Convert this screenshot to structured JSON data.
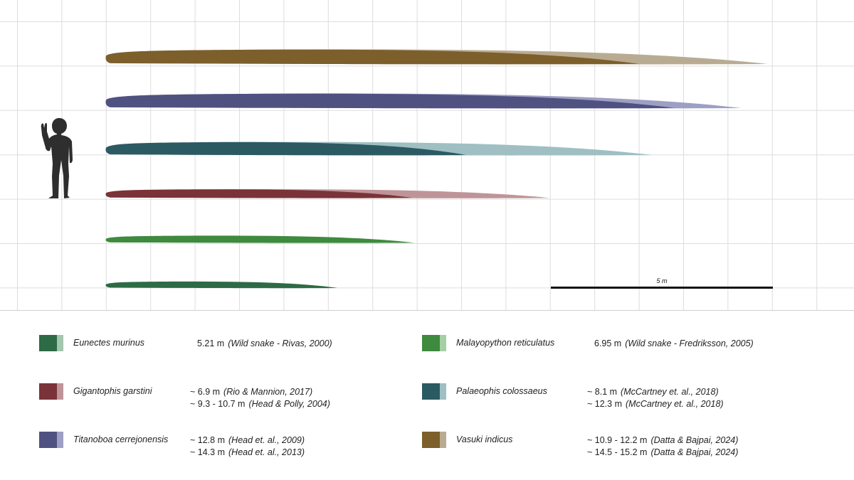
{
  "scale_bar": {
    "label": "5 m"
  },
  "human": {
    "icon": "human-silhouette-icon"
  },
  "colors": {
    "grid": "#dddddd",
    "background": "#ffffff"
  },
  "snakes": [
    {
      "key": "vasuki",
      "name": "Vasuki indicus",
      "dark": "#7d5f2c",
      "light": "#b9ab92",
      "lengths_m": [
        12.0,
        14.9
      ],
      "values": [
        {
          "len": "~ 10.9 - 12.2 m",
          "ref": "(Datta & Bajpai, 2024)"
        },
        {
          "len": "~ 14.5 - 15.2 m",
          "ref": "(Datta & Bajpai, 2024)"
        }
      ]
    },
    {
      "key": "titanoboa",
      "name": "Titanoboa cerrejonensis",
      "dark": "#4f5280",
      "light": "#9d9fc5",
      "lengths_m": [
        12.8,
        14.3
      ],
      "values": [
        {
          "len": "~ 12.8 m",
          "ref": "(Head et. al., 2009)"
        },
        {
          "len": "~ 14.3 m",
          "ref": "(Head et. al., 2013)"
        }
      ]
    },
    {
      "key": "palaeophis",
      "name": "Palaeophis colossaeus",
      "dark": "#2b5a63",
      "light": "#9fbfc3",
      "lengths_m": [
        8.1,
        12.3
      ],
      "values": [
        {
          "len": "~ 8.1 m",
          "ref": "(McCartney et. al., 2018)"
        },
        {
          "len": "~ 12.3 m",
          "ref": "(McCartney et. al., 2018)"
        }
      ]
    },
    {
      "key": "gigantophis",
      "name": "Gigantophis garstini",
      "dark": "#7a3338",
      "light": "#bf9498",
      "lengths_m": [
        6.9,
        10.0
      ],
      "values": [
        {
          "len": "~ 6.9 m",
          "ref": "(Rio & Mannion, 2017)"
        },
        {
          "len": "~ 9.3 - 10.7 m",
          "ref": "(Head & Polly, 2004)"
        }
      ]
    },
    {
      "key": "malayopython",
      "name": "Malayopython reticulatus",
      "dark": "#3e8a3e",
      "light": "#a6cfa6",
      "lengths_m": [
        6.95
      ],
      "values": [
        {
          "len": "6.95 m",
          "ref": "(Wild snake - Fredriksson, 2005)"
        }
      ]
    },
    {
      "key": "eunectes",
      "name": "Eunectes murinus",
      "dark": "#2c6b45",
      "light": "#a3c7af",
      "lengths_m": [
        5.21
      ],
      "values": [
        {
          "len": "5.21 m",
          "ref": "(Wild snake - Rivas, 2000)"
        }
      ]
    }
  ],
  "legend_order": [
    "eunectes",
    "malayopython",
    "gigantophis",
    "palaeophis",
    "titanoboa",
    "vasuki"
  ]
}
